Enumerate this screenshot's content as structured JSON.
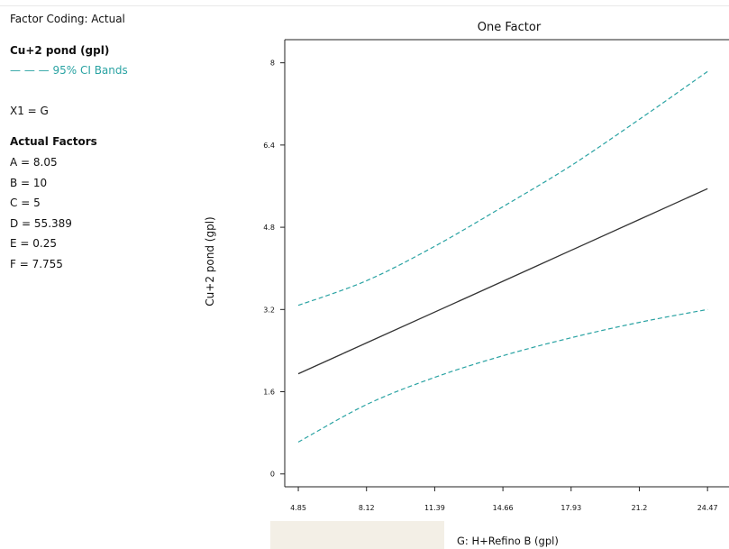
{
  "panel": {
    "coding": "Factor Coding: Actual",
    "response": "Cu+2 pond (gpl)",
    "legend_dash": "— — —",
    "legend": "95% CI Bands",
    "x1": "X1 = G",
    "actual_factors_title": "Actual Factors",
    "factors": [
      "A = 8.05",
      "B = 10",
      "C = 5",
      "D = 55.389",
      "E = 0.25",
      "F = 7.755"
    ]
  },
  "colors": {
    "ci_band": "#2aa3a3",
    "fit_line": "#333333"
  },
  "chart_data": {
    "type": "line",
    "title": "One Factor",
    "xlabel": "G: H+Refino B (gpl)",
    "ylabel": "Cu+2 pond (gpl)",
    "xlim": [
      4.2,
      25.5
    ],
    "ylim": [
      -0.25,
      8.45
    ],
    "x_ticks": [
      4.85,
      8.12,
      11.39,
      14.66,
      17.93,
      21.2,
      24.47
    ],
    "x_tick_labels": [
      "4.85",
      "8.12",
      "11.39",
      "14.66",
      "17.93",
      "21.2",
      "24.47"
    ],
    "y_ticks": [
      0,
      1.6,
      3.2,
      4.8,
      6.4,
      8
    ],
    "y_tick_labels": [
      "0",
      "1.6",
      "3.2",
      "4.8",
      "6.4",
      "8"
    ],
    "x": [
      4.85,
      8.12,
      11.39,
      14.66,
      17.93,
      21.2,
      24.47
    ],
    "series": [
      {
        "values": [
          1.95,
          2.55,
          3.15,
          3.75,
          4.35,
          4.95,
          5.55
        ]
      },
      {
        "values": [
          3.28,
          3.76,
          4.43,
          5.2,
          6.0,
          6.9,
          7.83
        ]
      },
      {
        "values": [
          0.62,
          1.35,
          1.88,
          2.3,
          2.65,
          2.95,
          3.2
        ]
      }
    ]
  }
}
